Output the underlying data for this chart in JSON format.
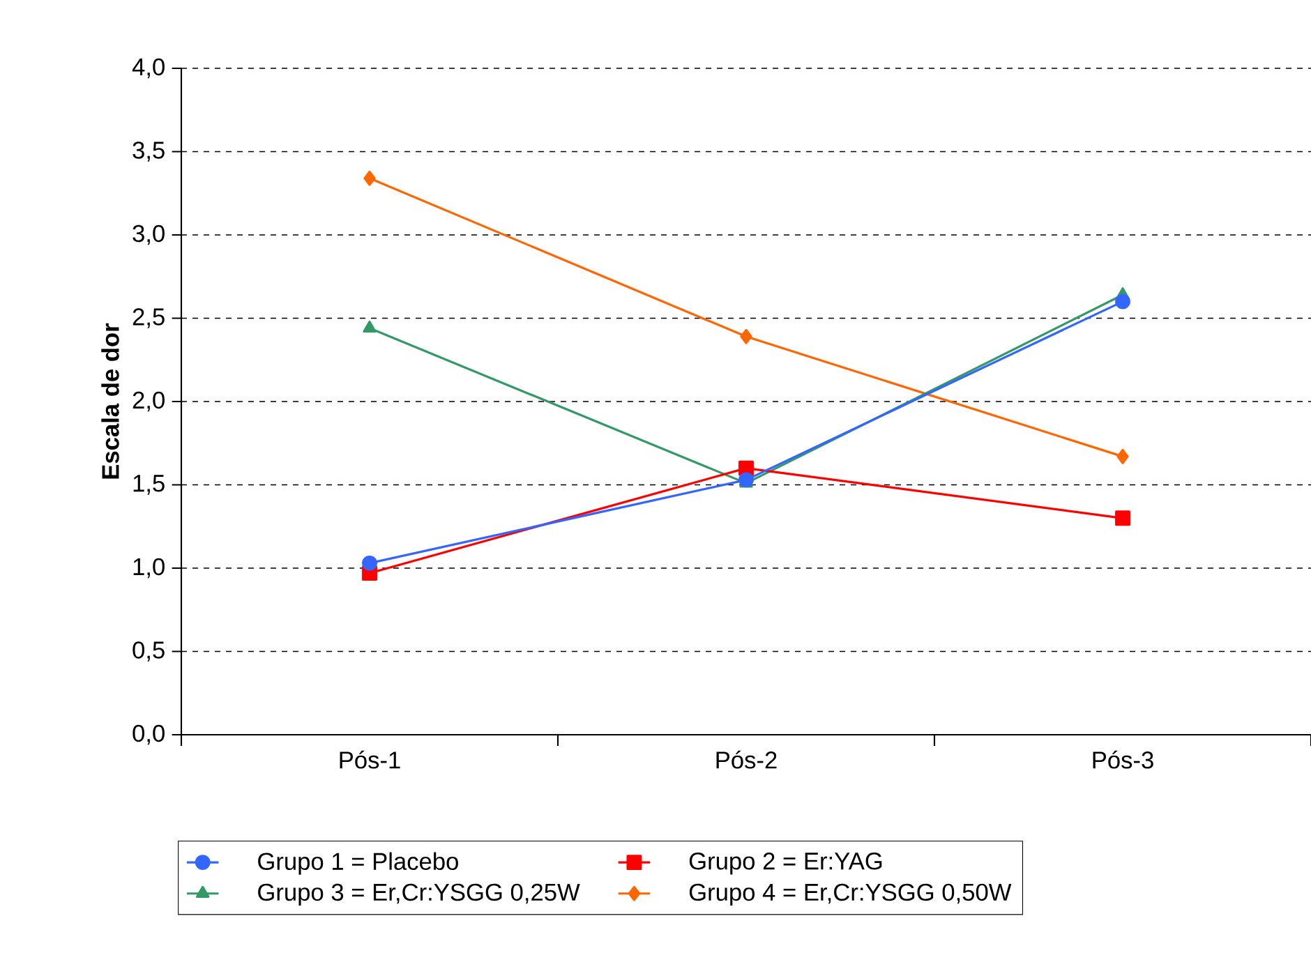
{
  "chart_data": {
    "type": "line",
    "ylabel": "Escala de dor",
    "categories": [
      "Pós-1",
      "Pós-2",
      "Pós-3"
    ],
    "series": [
      {
        "name": "Grupo 1 = Placebo",
        "color": "#3366ff",
        "marker": "circle",
        "values": [
          1.03,
          1.53,
          2.6
        ]
      },
      {
        "name": "Grupo 2 = Er:YAG",
        "color": "#ff0000",
        "marker": "square",
        "values": [
          0.97,
          1.6,
          1.3
        ]
      },
      {
        "name": "Grupo 3 = Er,Cr:YSGG 0,25W",
        "color": "#339966",
        "marker": "triangle",
        "values": [
          2.44,
          1.51,
          2.64
        ]
      },
      {
        "name": "Grupo 4 = Er,Cr:YSGG 0,50W",
        "color": "#ff6600",
        "marker": "diamond",
        "values": [
          3.34,
          2.39,
          1.67
        ]
      }
    ],
    "ylim": [
      0,
      4
    ],
    "yticks": [
      {
        "value": 0,
        "label": "0,0"
      },
      {
        "value": 0.5,
        "label": "0,5"
      },
      {
        "value": 1,
        "label": "1,0"
      },
      {
        "value": 1.5,
        "label": "1,5"
      },
      {
        "value": 2,
        "label": "2,0"
      },
      {
        "value": 2.5,
        "label": "2,5"
      },
      {
        "value": 3,
        "label": "3,0"
      },
      {
        "value": 3.5,
        "label": "3,5"
      },
      {
        "value": 4,
        "label": "4,0"
      }
    ],
    "grid": "y",
    "legend": "bottom",
    "line_style": "solid"
  }
}
